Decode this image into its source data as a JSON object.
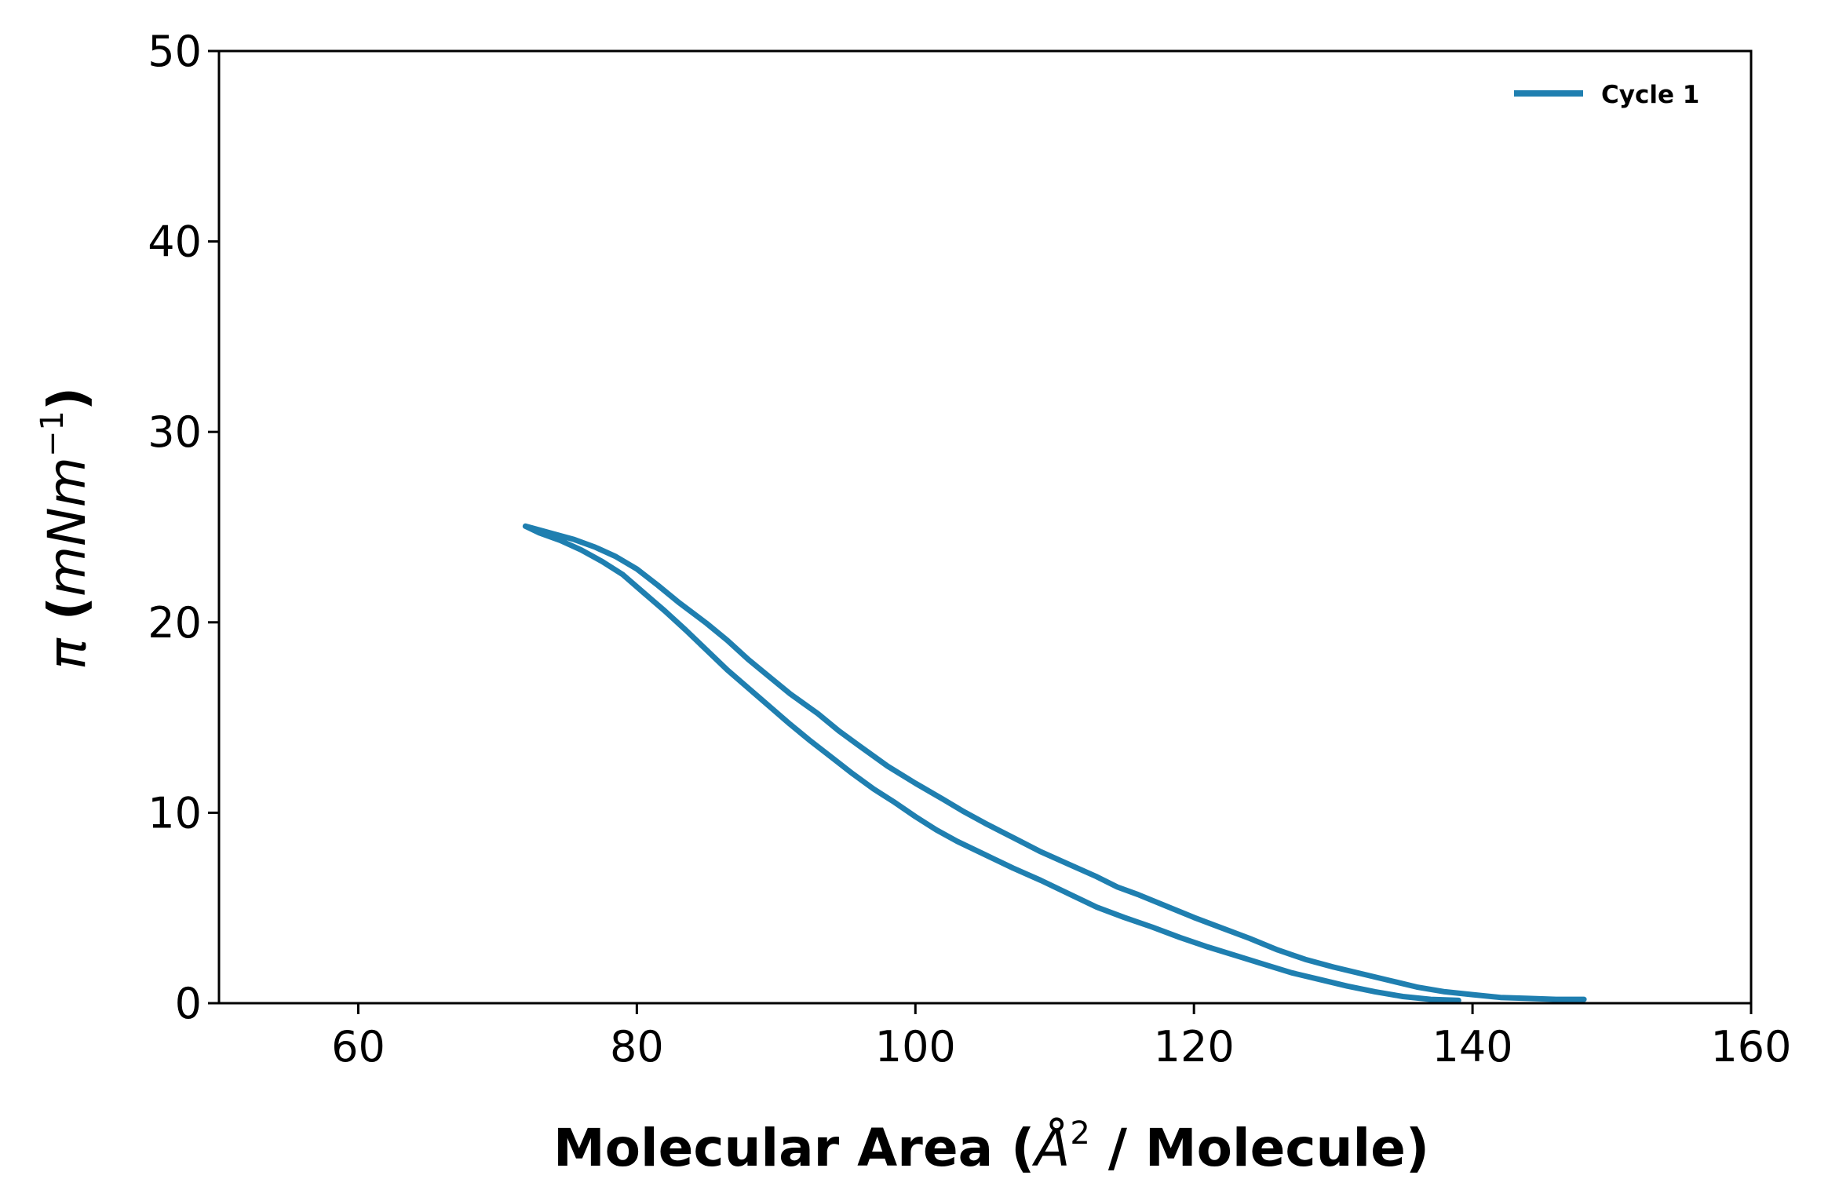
{
  "chart_data": {
    "type": "line",
    "title": "",
    "xlabel_parts": [
      "Molecular Area (",
      "Å",
      "2",
      " / Molecule)"
    ],
    "ylabel_parts": [
      "π",
      " (",
      "mNm",
      "−1",
      ")"
    ],
    "xlim": [
      50,
      160
    ],
    "ylim": [
      0,
      50
    ],
    "x_ticks": [
      60,
      80,
      100,
      120,
      140,
      160
    ],
    "y_ticks": [
      0,
      10,
      20,
      30,
      40,
      50
    ],
    "grid": false,
    "legend_position": "top-right",
    "colors": {
      "series": "#1f7fb0",
      "axes": "#000000",
      "background": "#ffffff"
    },
    "series": [
      {
        "name": "Cycle 1",
        "points": [
          [
            148.0,
            0.2
          ],
          [
            146.0,
            0.2
          ],
          [
            144.0,
            0.25
          ],
          [
            142.0,
            0.3
          ],
          [
            140.0,
            0.45
          ],
          [
            138.0,
            0.6
          ],
          [
            136.0,
            0.85
          ],
          [
            134.0,
            1.2
          ],
          [
            132.0,
            1.55
          ],
          [
            130.0,
            1.9
          ],
          [
            128.0,
            2.3
          ],
          [
            126.0,
            2.8
          ],
          [
            124.0,
            3.4
          ],
          [
            122.0,
            3.95
          ],
          [
            120.0,
            4.5
          ],
          [
            118.0,
            5.1
          ],
          [
            116.0,
            5.7
          ],
          [
            114.5,
            6.1
          ],
          [
            113.0,
            6.65
          ],
          [
            111.0,
            7.3
          ],
          [
            109.0,
            7.95
          ],
          [
            107.0,
            8.7
          ],
          [
            105.0,
            9.45
          ],
          [
            103.5,
            10.05
          ],
          [
            102.0,
            10.7
          ],
          [
            100.0,
            11.55
          ],
          [
            98.0,
            12.45
          ],
          [
            96.0,
            13.5
          ],
          [
            94.5,
            14.3
          ],
          [
            93.0,
            15.2
          ],
          [
            91.0,
            16.25
          ],
          [
            89.5,
            17.15
          ],
          [
            88.0,
            18.05
          ],
          [
            86.5,
            19.05
          ],
          [
            85.0,
            19.95
          ],
          [
            83.0,
            21.05
          ],
          [
            81.5,
            21.95
          ],
          [
            80.0,
            22.8
          ],
          [
            78.5,
            23.45
          ],
          [
            77.0,
            23.95
          ],
          [
            75.5,
            24.35
          ],
          [
            74.0,
            24.65
          ],
          [
            72.0,
            25.05
          ],
          [
            73.0,
            24.7
          ],
          [
            74.5,
            24.3
          ],
          [
            76.0,
            23.8
          ],
          [
            77.5,
            23.2
          ],
          [
            79.0,
            22.5
          ],
          [
            80.5,
            21.55
          ],
          [
            82.0,
            20.6
          ],
          [
            83.5,
            19.6
          ],
          [
            85.0,
            18.55
          ],
          [
            86.5,
            17.5
          ],
          [
            88.0,
            16.55
          ],
          [
            89.5,
            15.6
          ],
          [
            91.0,
            14.65
          ],
          [
            92.5,
            13.75
          ],
          [
            94.0,
            12.9
          ],
          [
            95.5,
            12.05
          ],
          [
            97.0,
            11.25
          ],
          [
            98.5,
            10.55
          ],
          [
            100.0,
            9.8
          ],
          [
            101.5,
            9.1
          ],
          [
            103.0,
            8.5
          ],
          [
            105.0,
            7.8
          ],
          [
            107.0,
            7.1
          ],
          [
            109.0,
            6.45
          ],
          [
            111.0,
            5.75
          ],
          [
            113.0,
            5.05
          ],
          [
            115.0,
            4.5
          ],
          [
            117.0,
            4.0
          ],
          [
            119.0,
            3.45
          ],
          [
            121.0,
            2.95
          ],
          [
            123.0,
            2.5
          ],
          [
            125.0,
            2.05
          ],
          [
            127.0,
            1.6
          ],
          [
            129.0,
            1.25
          ],
          [
            131.0,
            0.9
          ],
          [
            133.0,
            0.6
          ],
          [
            135.0,
            0.35
          ],
          [
            137.0,
            0.2
          ],
          [
            139.0,
            0.15
          ]
        ]
      }
    ]
  }
}
